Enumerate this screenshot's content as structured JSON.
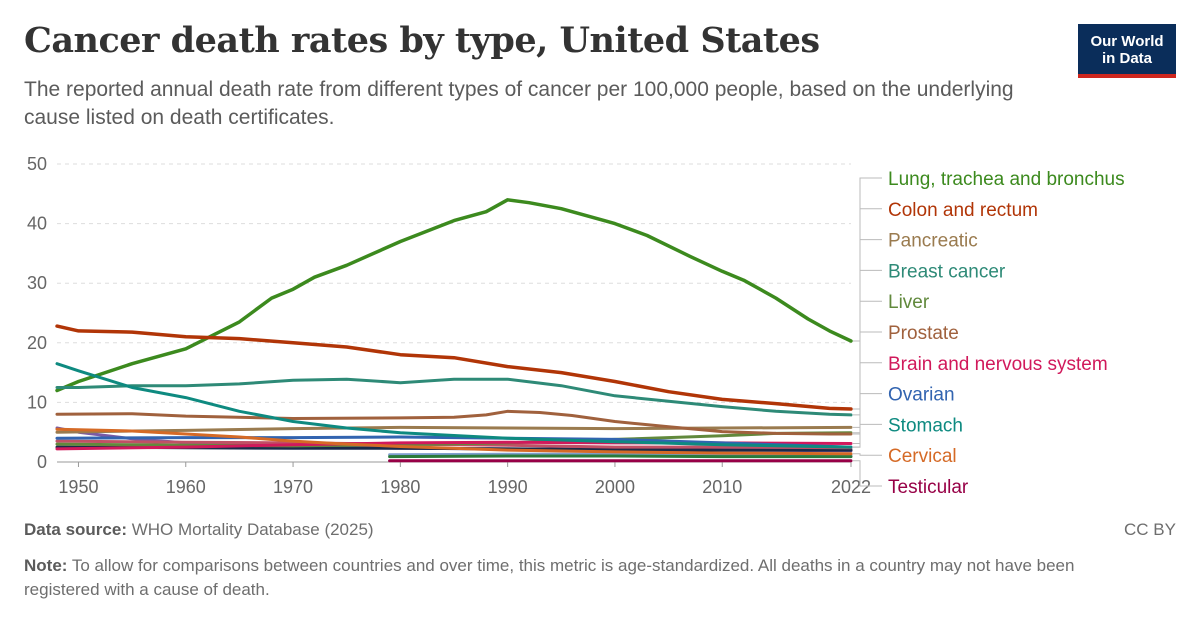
{
  "header": {
    "title": "Cancer death rates by type, United States",
    "subtitle": "The reported annual death rate from different types of cancer per 100,000 people, based on the underlying cause listed on death certificates.",
    "logo_line1": "Our World",
    "logo_line2": "in Data"
  },
  "footer": {
    "source_label": "Data source:",
    "source_text": "WHO Mortality Database (2025)",
    "license": "CC BY",
    "note_label": "Note:",
    "note_text": "To allow for comparisons between countries and over time, this metric is age-standardized. All deaths in a country may not have been registered with a cause of death."
  },
  "chart_data": {
    "type": "line",
    "xlim": [
      1948,
      2022
    ],
    "ylim": [
      0,
      50
    ],
    "x_ticks": [
      1950,
      1960,
      1970,
      1980,
      1990,
      2000,
      2010,
      2022
    ],
    "y_ticks": [
      0,
      10,
      20,
      30,
      40,
      50
    ],
    "grid": "horizontal dashed",
    "legend_position": "right",
    "series": [
      {
        "name": "Lung, trachea and bronchus",
        "color": "#3c8a1e",
        "legend": true,
        "x": [
          1948,
          1950,
          1955,
          1960,
          1965,
          1968,
          1970,
          1972,
          1975,
          1980,
          1985,
          1988,
          1990,
          1992,
          1995,
          1999,
          2000,
          2003,
          2007,
          2010,
          2012,
          2015,
          2018,
          2020,
          2022
        ],
        "y": [
          12,
          13.5,
          16.5,
          19,
          23.5,
          27.5,
          29,
          31,
          33,
          37,
          40.5,
          42,
          44,
          43.5,
          42.5,
          40.5,
          40,
          38,
          34.5,
          32,
          30.5,
          27.5,
          24,
          22,
          20.3
        ]
      },
      {
        "name": "Colon and rectum",
        "color": "#b13507",
        "legend": true,
        "x": [
          1948,
          1950,
          1955,
          1960,
          1965,
          1970,
          1975,
          1980,
          1985,
          1990,
          1995,
          2000,
          2005,
          2010,
          2015,
          2020,
          2022
        ],
        "y": [
          22.8,
          22,
          21.8,
          21,
          20.7,
          20,
          19.3,
          18,
          17.5,
          16,
          15,
          13.5,
          11.8,
          10.5,
          9.8,
          9,
          8.9
        ]
      },
      {
        "name": "Pancreatic",
        "color": "#9a7b4f",
        "legend": true,
        "x": [
          1948,
          1955,
          1960,
          1970,
          1980,
          1990,
          2000,
          2010,
          2022
        ],
        "y": [
          5,
          5.2,
          5.3,
          5.6,
          5.8,
          5.7,
          5.6,
          5.7,
          5.8
        ]
      },
      {
        "name": "Breast cancer",
        "color": "#2e8a77",
        "legend": true,
        "x": [
          1948,
          1950,
          1955,
          1960,
          1965,
          1970,
          1975,
          1980,
          1985,
          1990,
          1995,
          2000,
          2005,
          2010,
          2015,
          2020,
          2022
        ],
        "y": [
          12.5,
          12.5,
          12.8,
          12.8,
          13.1,
          13.7,
          13.9,
          13.3,
          13.9,
          13.9,
          12.8,
          11.1,
          10.2,
          9.3,
          8.5,
          8.0,
          7.9
        ]
      },
      {
        "name": "Liver",
        "color": "#61893c",
        "legend": true,
        "x": [
          1948,
          1960,
          1970,
          1980,
          1990,
          2000,
          2010,
          2015,
          2022
        ],
        "y": [
          3.0,
          2.8,
          2.7,
          2.9,
          3.2,
          3.8,
          4.4,
          4.8,
          4.9
        ]
      },
      {
        "name": "Prostate",
        "color": "#a0613d",
        "legend": true,
        "x": [
          1948,
          1955,
          1960,
          1970,
          1980,
          1985,
          1988,
          1990,
          1993,
          1996,
          2000,
          2005,
          2010,
          2015,
          2020,
          2022
        ],
        "y": [
          8.0,
          8.1,
          7.7,
          7.3,
          7.4,
          7.5,
          7.9,
          8.5,
          8.3,
          7.8,
          6.8,
          5.9,
          5.1,
          4.8,
          4.7,
          4.7
        ]
      },
      {
        "name": "Brain and nervous system",
        "color": "#d1195b",
        "legend": true,
        "x": [
          1948,
          1960,
          1970,
          1980,
          1990,
          2000,
          2010,
          2022
        ],
        "y": [
          2.2,
          2.5,
          2.9,
          3.2,
          3.3,
          3.2,
          3.2,
          3.1
        ]
      },
      {
        "name": "Ovarian",
        "color": "#3264b0",
        "legend": true,
        "x": [
          1948,
          1960,
          1970,
          1980,
          1990,
          2000,
          2010,
          2022
        ],
        "y": [
          4.0,
          4.1,
          4.1,
          4.2,
          4.0,
          3.8,
          3.2,
          2.5
        ]
      },
      {
        "name": "Stomach",
        "color": "#0e8a80",
        "legend": true,
        "x": [
          1948,
          1950,
          1955,
          1960,
          1965,
          1970,
          1975,
          1980,
          1990,
          2000,
          2010,
          2022
        ],
        "y": [
          16.5,
          15.3,
          12.5,
          10.8,
          8.5,
          6.8,
          5.7,
          4.9,
          4.0,
          3.4,
          2.9,
          2.5
        ]
      },
      {
        "name": "Cervical",
        "color": "#d56a26",
        "legend": true,
        "x": [
          1948,
          1955,
          1960,
          1965,
          1970,
          1975,
          1980,
          1990,
          2000,
          2010,
          2022
        ],
        "y": [
          5.5,
          5.2,
          4.7,
          4.2,
          3.5,
          3.0,
          2.6,
          2.0,
          1.7,
          1.5,
          1.4
        ]
      },
      {
        "name": "Testicular",
        "color": "#970046",
        "legend": true,
        "x": [
          1979,
          1990,
          2000,
          2010,
          2022
        ],
        "y": [
          0.2,
          0.2,
          0.2,
          0.2,
          0.2
        ]
      },
      {
        "name": "",
        "color": "#7a5aa6",
        "legend": false,
        "x": [
          1948,
          1950,
          1955,
          1960,
          1970,
          1980,
          1990,
          2000,
          2010,
          2022
        ],
        "y": [
          5.7,
          5.0,
          3.9,
          3.2,
          2.6,
          2.3,
          2.2,
          2.1,
          2.0,
          1.9
        ]
      },
      {
        "name": "",
        "color": "#1a2a4a",
        "legend": false,
        "x": [
          1948,
          1960,
          1970,
          1980,
          1990,
          2000,
          2010,
          2022
        ],
        "y": [
          2.5,
          2.4,
          2.3,
          2.3,
          2.2,
          2.1,
          2.0,
          2.0
        ]
      },
      {
        "name": "",
        "color": "#c15065",
        "legend": false,
        "x": [
          1948,
          1960,
          1970,
          1980,
          1990,
          2000,
          2010,
          2022
        ],
        "y": [
          3.5,
          3.3,
          3.2,
          3.0,
          2.8,
          2.5,
          2.5,
          2.4
        ]
      },
      {
        "name": "",
        "color": "#7f9fcf",
        "legend": false,
        "x": [
          1979,
          1990,
          2000,
          2010,
          2022
        ],
        "y": [
          1.2,
          1.3,
          1.3,
          1.2,
          1.2
        ]
      },
      {
        "name": "",
        "color": "#2a7a3a",
        "legend": false,
        "x": [
          1979,
          1990,
          2000,
          2010,
          2022
        ],
        "y": [
          0.9,
          1.0,
          1.0,
          0.9,
          0.9
        ]
      }
    ]
  }
}
